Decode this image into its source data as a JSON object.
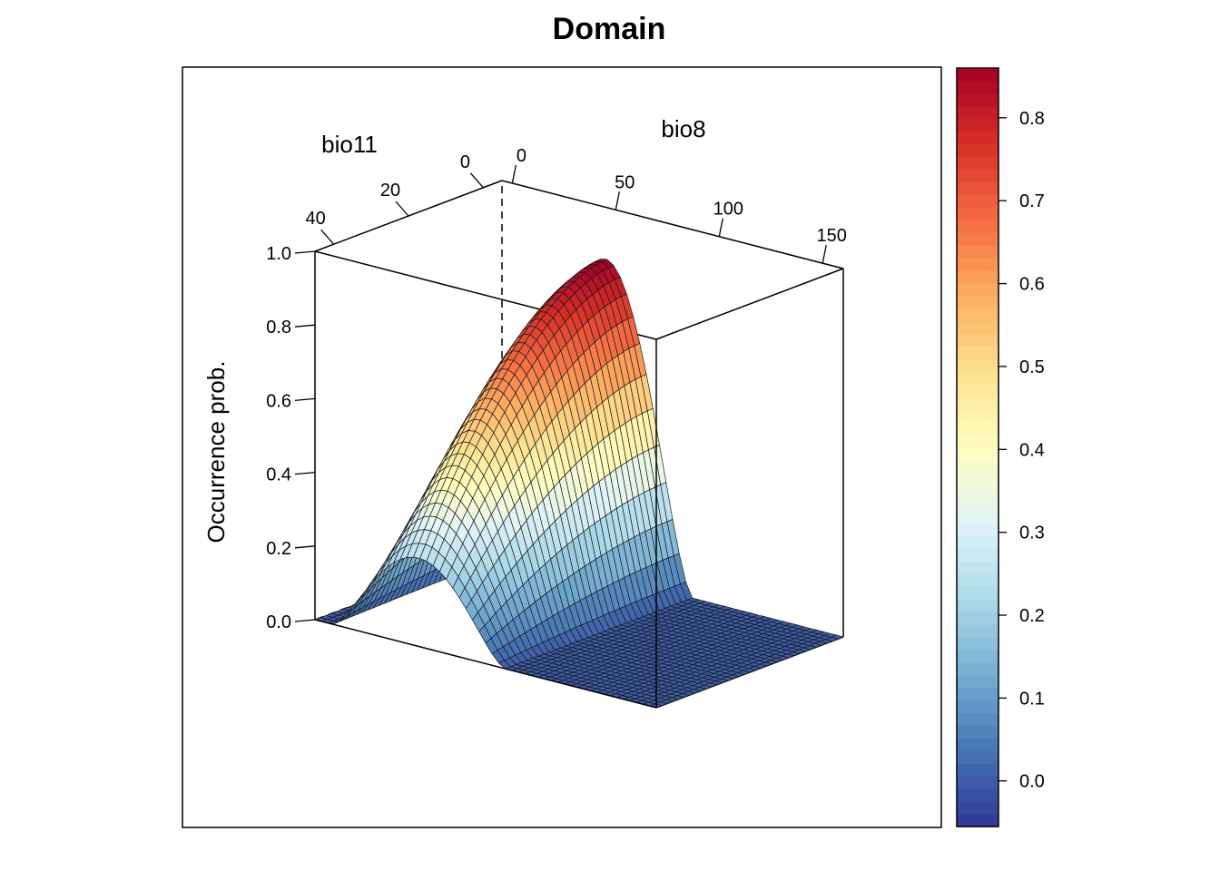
{
  "chart_data": {
    "type": "surface",
    "title": "Domain",
    "zlabel": "Occurrence prob.",
    "x_axis": {
      "label": "bio8",
      "ticks": [
        "0",
        "50",
        "100",
        "150"
      ],
      "range": [
        -5,
        160
      ]
    },
    "y_axis": {
      "label": "bio11",
      "ticks": [
        "0",
        "20",
        "40"
      ],
      "range": [
        -5,
        45
      ]
    },
    "z_axis": {
      "ticks": [
        "0.0",
        "0.2",
        "0.4",
        "0.6",
        "0.8",
        "1.0"
      ],
      "range": [
        0,
        1
      ]
    },
    "colorbar": {
      "ticks": [
        "0.0",
        "0.1",
        "0.2",
        "0.3",
        "0.4",
        "0.5",
        "0.6",
        "0.7",
        "0.8"
      ],
      "range": [
        -0.055,
        0.86
      ],
      "palette": [
        "#313695",
        "#4575b4",
        "#74add1",
        "#abd9e9",
        "#e0f3f8",
        "#ffffbf",
        "#fee090",
        "#fdae61",
        "#f46d43",
        "#d73027",
        "#a50026"
      ]
    },
    "surface": {
      "peak_value": 0.86,
      "edge_value_bio11_max": 0.24,
      "ridge_bio8_center": 45,
      "ridge_bio8_halfwidth": 42,
      "floor_value": 0.0
    }
  }
}
